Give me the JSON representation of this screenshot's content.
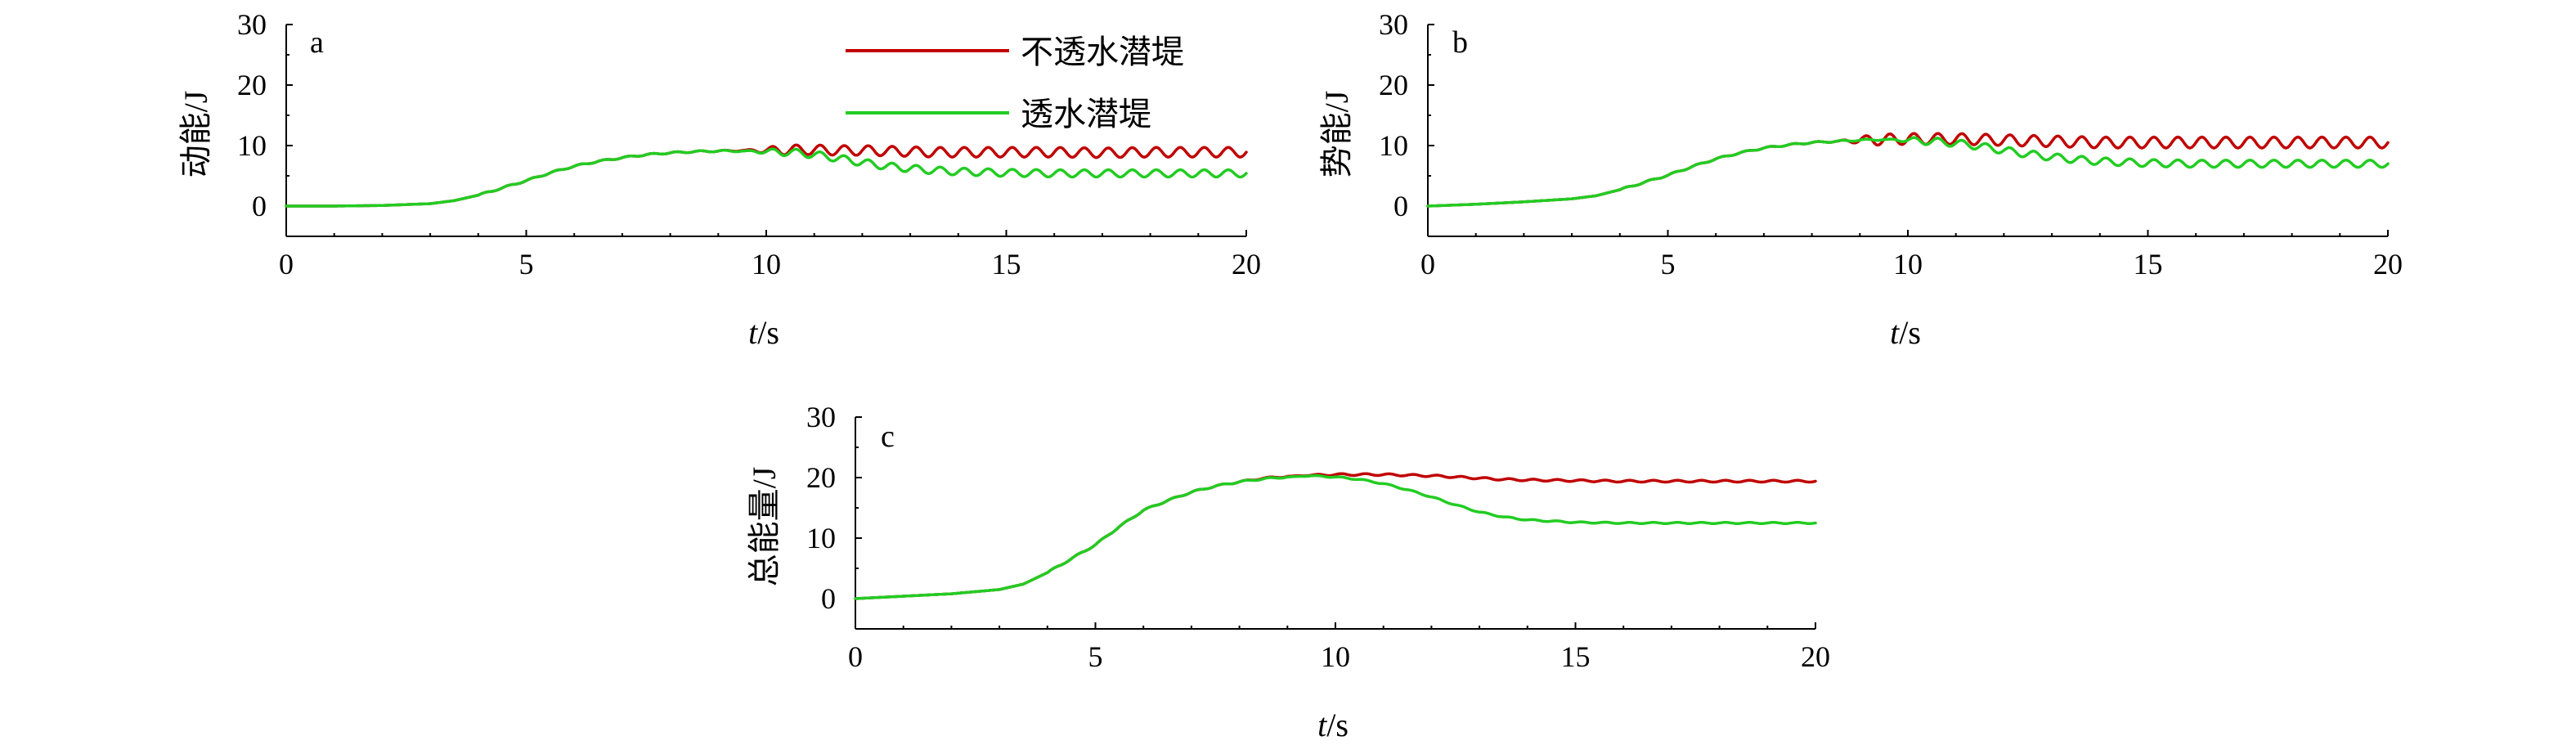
{
  "colors": {
    "impermeable": "#c00000",
    "permeable": "#22cc22",
    "axis": "#000000"
  },
  "legend": {
    "items": [
      {
        "key": "impermeable",
        "label": "不透水潜堤"
      },
      {
        "key": "permeable",
        "label": "透水潜堤"
      }
    ]
  },
  "chart_data": [
    {
      "type": "line",
      "panel": "a",
      "ylabel": "动能/J",
      "xlabel_var": "t",
      "xlabel_unit": "/s",
      "xlim": [
        0,
        20
      ],
      "ylim": [
        -5,
        30
      ],
      "x_ticks": [
        0,
        5,
        10,
        15,
        20
      ],
      "y_ticks": [
        0,
        10,
        20,
        30
      ],
      "grid": false,
      "legend_position": "top-center",
      "series": [
        {
          "name": "不透水潜堤",
          "key": "impermeable",
          "x": [
            0,
            1,
            2,
            3,
            3.5,
            4,
            4.5,
            5,
            5.5,
            6,
            6.5,
            7,
            7.5,
            8,
            8.5,
            9,
            9.5,
            10,
            10.5,
            11,
            11.5,
            12,
            12.5,
            13,
            13.5,
            14,
            15,
            16,
            17,
            18,
            19,
            20
          ],
          "y": [
            0,
            0,
            0.1,
            0.4,
            0.9,
            1.8,
            3.0,
            4.2,
            5.5,
            6.6,
            7.4,
            8.0,
            8.5,
            8.8,
            9.0,
            9.1,
            9.2,
            9.2,
            9.3,
            9.3,
            9.2,
            9.2,
            9.1,
            9.0,
            8.9,
            8.9,
            8.9,
            8.9,
            8.8,
            8.9,
            8.9,
            8.9
          ],
          "oscillation_amplitude": 0.8,
          "oscillation_period": 0.5,
          "oscillation_start": 9.5
        },
        {
          "name": "透水潜堤",
          "key": "permeable",
          "x": [
            0,
            1,
            2,
            3,
            3.5,
            4,
            4.5,
            5,
            5.5,
            6,
            6.5,
            7,
            7.5,
            8,
            8.5,
            9,
            9.5,
            10,
            10.5,
            11,
            11.5,
            12,
            12.5,
            13,
            13.5,
            14,
            15,
            16,
            17,
            18,
            19,
            20
          ],
          "y": [
            0,
            0,
            0.1,
            0.4,
            0.9,
            1.8,
            3.0,
            4.2,
            5.5,
            6.6,
            7.4,
            8.0,
            8.5,
            8.8,
            9.0,
            9.1,
            9.1,
            9.0,
            8.9,
            8.5,
            7.9,
            7.2,
            6.6,
            6.2,
            5.9,
            5.7,
            5.5,
            5.4,
            5.4,
            5.4,
            5.4,
            5.4
          ],
          "oscillation_amplitude": 0.6,
          "oscillation_period": 0.5,
          "oscillation_start": 9.5
        }
      ]
    },
    {
      "type": "line",
      "panel": "b",
      "ylabel": "势能/J",
      "xlabel_var": "t",
      "xlabel_unit": "/s",
      "xlim": [
        0,
        20
      ],
      "ylim": [
        -5,
        30
      ],
      "x_ticks": [
        0,
        5,
        10,
        15,
        20
      ],
      "y_ticks": [
        0,
        10,
        20,
        30
      ],
      "grid": false,
      "series": [
        {
          "name": "不透水潜堤",
          "key": "impermeable",
          "x": [
            0,
            1,
            2,
            3,
            3.5,
            4,
            4.5,
            5,
            5.5,
            6,
            6.5,
            7,
            7.5,
            8,
            8.5,
            9,
            9.5,
            10,
            10.5,
            11,
            11.5,
            12,
            12.5,
            13,
            13.5,
            14,
            15,
            16,
            17,
            18,
            19,
            20
          ],
          "y": [
            0,
            0.3,
            0.7,
            1.2,
            1.7,
            2.7,
            3.9,
            5.1,
            6.5,
            7.8,
            8.8,
            9.6,
            10.1,
            10.5,
            10.7,
            10.9,
            11.0,
            11.1,
            11.1,
            11.1,
            11.0,
            10.9,
            10.8,
            10.7,
            10.6,
            10.5,
            10.5,
            10.5,
            10.5,
            10.5,
            10.5,
            10.5
          ],
          "oscillation_amplitude": 0.9,
          "oscillation_period": 0.5,
          "oscillation_start": 8.5
        },
        {
          "name": "透水潜堤",
          "key": "permeable",
          "x": [
            0,
            1,
            2,
            3,
            3.5,
            4,
            4.5,
            5,
            5.5,
            6,
            6.5,
            7,
            7.5,
            8,
            8.5,
            9,
            9.5,
            10,
            10.5,
            11,
            11.5,
            12,
            12.5,
            13,
            13.5,
            14,
            15,
            16,
            17,
            18,
            19,
            20
          ],
          "y": [
            0,
            0.3,
            0.7,
            1.2,
            1.7,
            2.7,
            3.9,
            5.1,
            6.5,
            7.8,
            8.8,
            9.6,
            10.1,
            10.5,
            10.7,
            10.9,
            11.0,
            10.9,
            10.7,
            10.4,
            9.9,
            9.2,
            8.6,
            8.1,
            7.7,
            7.4,
            7.1,
            7.0,
            7.0,
            7.0,
            7.0,
            7.0
          ],
          "oscillation_amplitude": 0.6,
          "oscillation_period": 0.5,
          "oscillation_start": 9.5
        }
      ]
    },
    {
      "type": "line",
      "panel": "c",
      "ylabel": "总能量/J",
      "xlabel_var": "t",
      "xlabel_unit": "/s",
      "xlim": [
        0,
        20
      ],
      "ylim": [
        -5,
        30
      ],
      "x_ticks": [
        0,
        5,
        10,
        15,
        20
      ],
      "y_ticks": [
        0,
        10,
        20,
        30
      ],
      "grid": false,
      "series": [
        {
          "name": "不透水潜堤",
          "key": "impermeable",
          "x": [
            0,
            1,
            2,
            3,
            3.5,
            4,
            4.5,
            5,
            5.5,
            6,
            6.5,
            7,
            7.5,
            8,
            8.5,
            9,
            9.5,
            10,
            10.5,
            11,
            11.5,
            12,
            12.5,
            13,
            13.5,
            14,
            15,
            16,
            17,
            18,
            19,
            20
          ],
          "y": [
            0,
            0.4,
            0.8,
            1.5,
            2.4,
            4.3,
            6.6,
            8.9,
            11.9,
            14.6,
            16.2,
            17.6,
            18.6,
            19.3,
            19.9,
            20.2,
            20.4,
            20.5,
            20.5,
            20.5,
            20.4,
            20.3,
            20.1,
            19.9,
            19.7,
            19.6,
            19.5,
            19.4,
            19.4,
            19.4,
            19.4,
            19.4
          ],
          "oscillation_amplitude": 0.15,
          "oscillation_period": 0.5,
          "oscillation_start": 9.0
        },
        {
          "name": "透水潜堤",
          "key": "permeable",
          "x": [
            0,
            1,
            2,
            3,
            3.5,
            4,
            4.5,
            5,
            5.5,
            6,
            6.5,
            7,
            7.5,
            8,
            8.5,
            9,
            9.5,
            10,
            10.5,
            11,
            11.5,
            12,
            12.5,
            13,
            13.5,
            14,
            15,
            16,
            17,
            18,
            19,
            20
          ],
          "y": [
            0,
            0.4,
            0.8,
            1.5,
            2.4,
            4.3,
            6.6,
            8.9,
            11.9,
            14.6,
            16.2,
            17.6,
            18.6,
            19.3,
            19.8,
            20.1,
            20.3,
            20.1,
            19.7,
            19.0,
            18.0,
            16.8,
            15.5,
            14.3,
            13.5,
            13.0,
            12.6,
            12.5,
            12.5,
            12.5,
            12.5,
            12.5
          ],
          "oscillation_amplitude": 0.1,
          "oscillation_period": 0.5,
          "oscillation_start": 9.0
        }
      ]
    }
  ]
}
